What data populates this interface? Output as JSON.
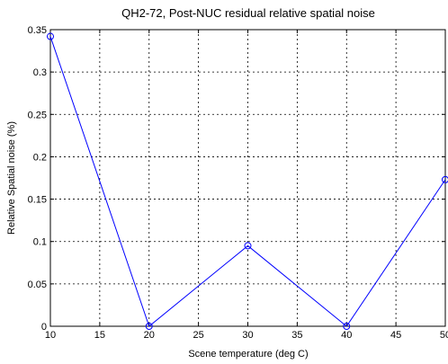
{
  "chart_data": {
    "type": "line",
    "title": "QH2-72, Post-NUC residual relative spatial noise",
    "xlabel": "Scene temperature (deg C)",
    "ylabel": "Relative Spatial noise (%)",
    "xlim": [
      10,
      50
    ],
    "ylim": [
      0,
      0.35
    ],
    "xticks": [
      "10",
      "15",
      "20",
      "25",
      "30",
      "35",
      "40",
      "45",
      "50"
    ],
    "yticks": [
      "0",
      "0.05",
      "0.1",
      "0.15",
      "0.2",
      "0.25",
      "0.3",
      "0.35"
    ],
    "grid": true,
    "marker": "circle",
    "series": [
      {
        "x": [
          10,
          20,
          30,
          40,
          50
        ],
        "y": [
          0.342,
          0.0,
          0.095,
          0.0,
          0.173
        ]
      }
    ],
    "colors": {
      "line": "#0000ff",
      "grid": "#000000",
      "axes": "#000000"
    }
  }
}
